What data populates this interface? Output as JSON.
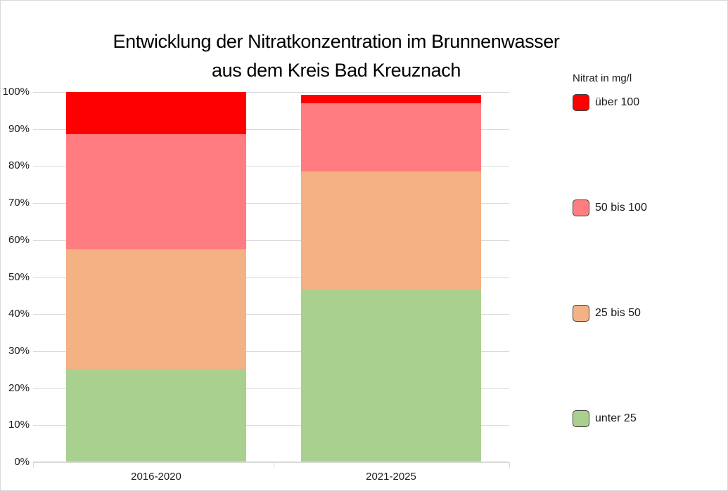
{
  "chart_data": {
    "type": "bar",
    "stacked": true,
    "percent_axis": true,
    "title_line1": "Entwicklung der Nitratkonzentration im Brunnenwasser",
    "title_line2": "aus dem Kreis Bad Kreuznach",
    "categories": [
      "2016-2020",
      "2021-2025"
    ],
    "series": [
      {
        "name": "über 100",
        "color": "#FF0000",
        "values": [
          11.4,
          2.4
        ]
      },
      {
        "name": "50 bis 100",
        "color": "#FF7C80",
        "values": [
          31.1,
          18.4
        ]
      },
      {
        "name": "25 bis 50",
        "color": "#F4B183",
        "values": [
          32.2,
          31.9
        ]
      },
      {
        "name": "unter 25",
        "color": "#A9D08E",
        "values": [
          25.3,
          46.6
        ]
      }
    ],
    "legend_title": "Nitrat in mg/l",
    "legend_position": "right",
    "y_axis": {
      "min": 0,
      "max": 100,
      "tick_labels": [
        "0%",
        "10%",
        "20%",
        "30%",
        "40%",
        "50%",
        "60%",
        "70%",
        "80%",
        "90%",
        "100%"
      ],
      "grid": true
    },
    "grid_color": "#D9D9D9",
    "axis_color": "#D9D9D9",
    "background_color": "#FFFFFF"
  }
}
